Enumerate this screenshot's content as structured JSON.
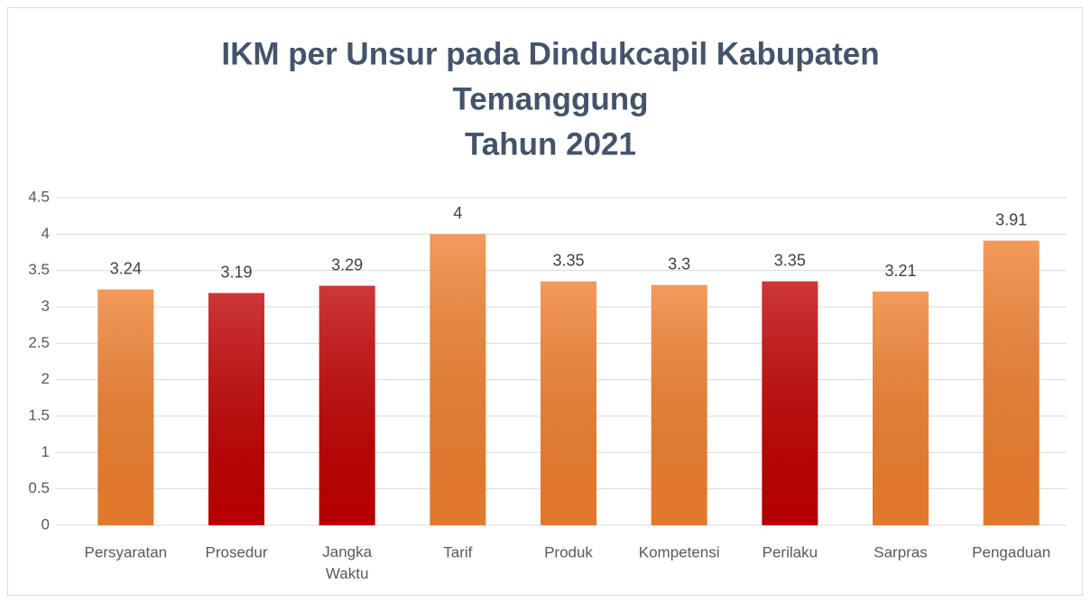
{
  "chart_data": {
    "type": "bar",
    "title": [
      "IKM per Unsur pada Dindukcapil Kabupaten",
      "Temanggung",
      "Tahun 2021"
    ],
    "categories": [
      "Persyaratan",
      "Prosedur",
      "Jangka Waktu",
      "Tarif",
      "Produk",
      "Kompetensi",
      "Perilaku",
      "Sarpras",
      "Pengaduan"
    ],
    "values": [
      3.24,
      3.19,
      3.29,
      4,
      3.35,
      3.3,
      3.35,
      3.21,
      3.91
    ],
    "colors": [
      "#EF7F2E",
      "#C00000",
      "#C00000",
      "#EF7F2E",
      "#EF7F2E",
      "#EF7F2E",
      "#C00000",
      "#EF7F2E",
      "#EF7F2E"
    ],
    "ylim": [
      0,
      4.5
    ],
    "yticks": [
      0,
      0.5,
      1,
      1.5,
      2,
      2.5,
      3,
      3.5,
      4,
      4.5
    ],
    "grid": true
  }
}
